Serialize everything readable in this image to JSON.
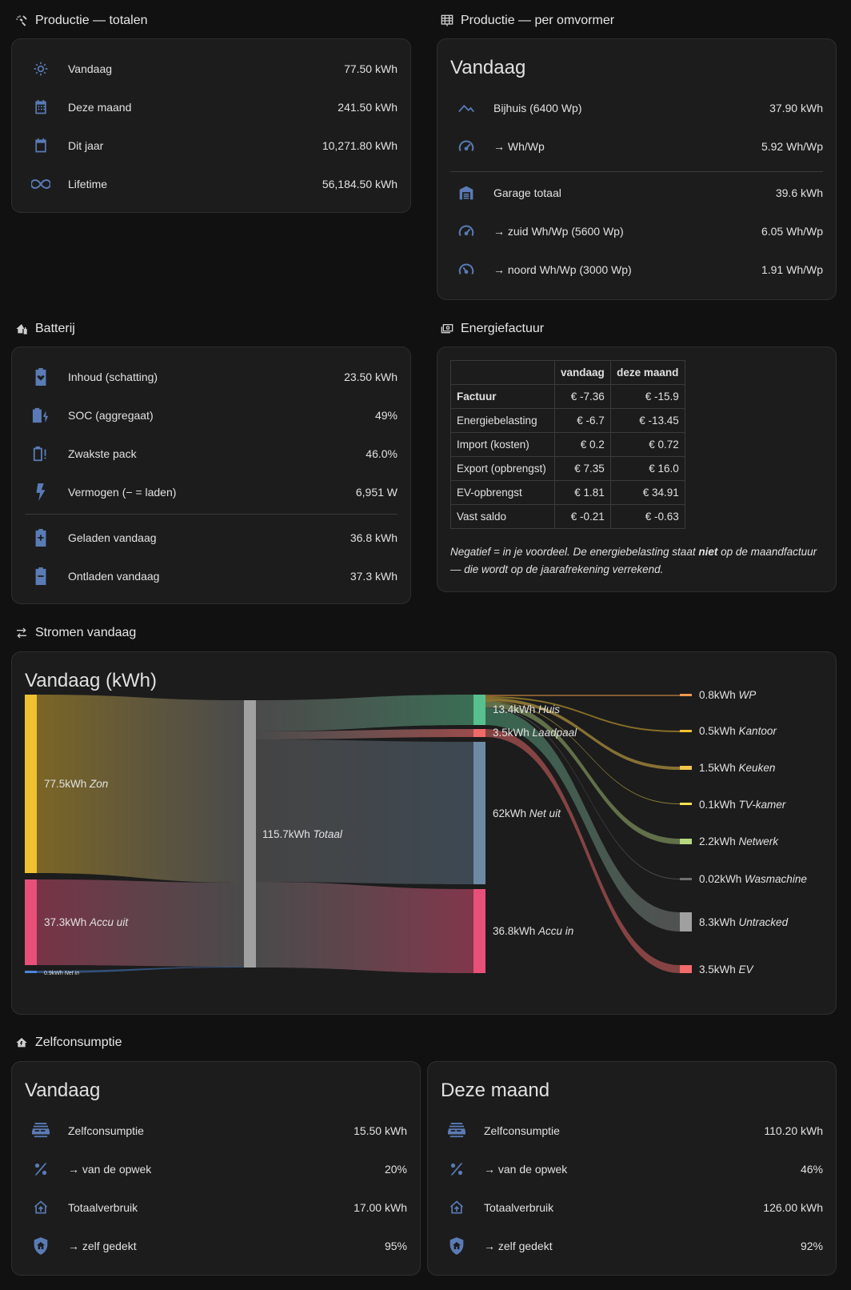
{
  "colors": {
    "background": "#111111",
    "card": "#1c1c1c",
    "icon": "#5a7bb5"
  },
  "productie_totalen": {
    "heading": "Productie — totalen",
    "rows": [
      {
        "icon": "sun-icon",
        "label": "Vandaag",
        "value": "77.50 kWh"
      },
      {
        "icon": "calendar-month-icon",
        "label": "Deze maand",
        "value": "241.50 kWh"
      },
      {
        "icon": "calendar-icon",
        "label": "Dit jaar",
        "value": "10,271.80 kWh"
      },
      {
        "icon": "infinity-icon",
        "label": "Lifetime",
        "value": "56,184.50 kWh"
      }
    ]
  },
  "productie_omvormer": {
    "heading": "Productie — per omvormer",
    "title": "Vandaag",
    "rows": [
      {
        "icon": "roof-icon",
        "label": "Bijhuis (6400 Wp)",
        "value": "37.90 kWh"
      },
      {
        "icon": "gauge-icon",
        "label": "→ Wh/Wp",
        "value": "5.92 Wh/Wp"
      },
      {
        "icon": "garage-icon",
        "label": "Garage totaal",
        "value": "39.6 kWh"
      },
      {
        "icon": "gauge-icon",
        "label": "→ zuid Wh/Wp (5600 Wp)",
        "value": "6.05 Wh/Wp"
      },
      {
        "icon": "gauge-low-icon",
        "label": "→ noord Wh/Wp (3000 Wp)",
        "value": "1.91 Wh/Wp"
      }
    ]
  },
  "batterij": {
    "heading": "Batterij",
    "rows": [
      {
        "icon": "battery-heart-icon",
        "label": "Inhoud (schatting)",
        "value": "23.50 kWh"
      },
      {
        "icon": "battery-charging-icon",
        "label": "SOC (aggregaat)",
        "value": "49%"
      },
      {
        "icon": "battery-alert-icon",
        "label": "Zwakste pack",
        "value": "46.0%"
      },
      {
        "icon": "flash-icon",
        "label": "Vermogen (− = laden)",
        "value": "6,951 W"
      },
      {
        "icon": "battery-plus-icon",
        "label": "Geladen vandaag",
        "value": "36.8 kWh"
      },
      {
        "icon": "battery-minus-icon",
        "label": "Ontladen vandaag",
        "value": "37.3 kWh"
      }
    ]
  },
  "energiefactuur": {
    "heading": "Energiefactuur",
    "columns": [
      "",
      "vandaag",
      "deze maand"
    ],
    "rows": [
      [
        "Factuur",
        "€ -7.36",
        "€ -15.9"
      ],
      [
        "Energiebelasting",
        "€ -6.7",
        "€ -13.45"
      ],
      [
        "Import (kosten)",
        "€ 0.2",
        "€ 0.72"
      ],
      [
        "Export (opbrengst)",
        "€ 7.35",
        "€ 16.0"
      ],
      [
        "EV-opbrengst",
        "€ 1.81",
        "€ 34.91"
      ],
      [
        "Vast saldo",
        "€ -0.21",
        "€ -0.63"
      ]
    ],
    "note_part1": "Negatief = in je voordeel. De energiebelasting staat ",
    "note_bold": "niet",
    "note_part2": " op de maandfactuur — die wordt op de jaarafrekening verrekend."
  },
  "stromen": {
    "heading": "Stromen vandaag",
    "title": "Vandaag (kWh)",
    "sources": [
      {
        "value": "77.5kWh",
        "name": "Zon",
        "color": "#f0c030"
      },
      {
        "value": "37.3kWh",
        "name": "Accu uit",
        "color": "#e8507a"
      },
      {
        "value": "0.9kWh",
        "name": "Net in",
        "color": "#4a86d8"
      }
    ],
    "total": {
      "value": "115.7kWh",
      "name": "Totaal",
      "color": "#a0a0a0"
    },
    "middle": [
      {
        "value": "13.4kWh",
        "name": "Huis",
        "color": "#58c08e"
      },
      {
        "value": "3.5kWh",
        "name": "Laadpaal",
        "color": "#f06a6a"
      },
      {
        "value": "62kWh",
        "name": "Net uit",
        "color": "#6d8aa4"
      },
      {
        "value": "36.8kWh",
        "name": "Accu in",
        "color": "#e8507a"
      }
    ],
    "sinks": [
      {
        "value": "0.8kWh",
        "name": "WP",
        "color": "#f09a4a"
      },
      {
        "value": "0.5kWh",
        "name": "Kantoor",
        "color": "#f0c030"
      },
      {
        "value": "1.5kWh",
        "name": "Keuken",
        "color": "#f2c64a"
      },
      {
        "value": "0.1kWh",
        "name": "TV-kamer",
        "color": "#f5e050"
      },
      {
        "value": "2.2kWh",
        "name": "Netwerk",
        "color": "#b6d880"
      },
      {
        "value": "0.02kWh",
        "name": "Wasmachine",
        "color": "#707070"
      },
      {
        "value": "8.3kWh",
        "name": "Untracked",
        "color": "#a0a0a0"
      },
      {
        "value": "3.5kWh",
        "name": "EV",
        "color": "#f06a6a"
      }
    ]
  },
  "zelfconsumptie": {
    "heading": "Zelfconsumptie",
    "cards": [
      {
        "title": "Vandaag",
        "rows": [
          {
            "icon": "solar-panel-icon",
            "label": "Zelfconsumptie",
            "value": "15.50 kWh"
          },
          {
            "icon": "percent-icon",
            "label": "→ van de opwek",
            "value": "20%"
          },
          {
            "icon": "home-export-icon",
            "label": "Totaalverbruik",
            "value": "17.00 kWh"
          },
          {
            "icon": "shield-home-icon",
            "label": "→ zelf gedekt",
            "value": "95%"
          }
        ]
      },
      {
        "title": "Deze maand",
        "rows": [
          {
            "icon": "solar-panel-icon",
            "label": "Zelfconsumptie",
            "value": "110.20 kWh"
          },
          {
            "icon": "percent-icon",
            "label": "→ van de opwek",
            "value": "46%"
          },
          {
            "icon": "home-export-icon",
            "label": "Totaalverbruik",
            "value": "126.00 kWh"
          },
          {
            "icon": "shield-home-icon",
            "label": "→ zelf gedekt",
            "value": "92%"
          }
        ]
      }
    ]
  }
}
